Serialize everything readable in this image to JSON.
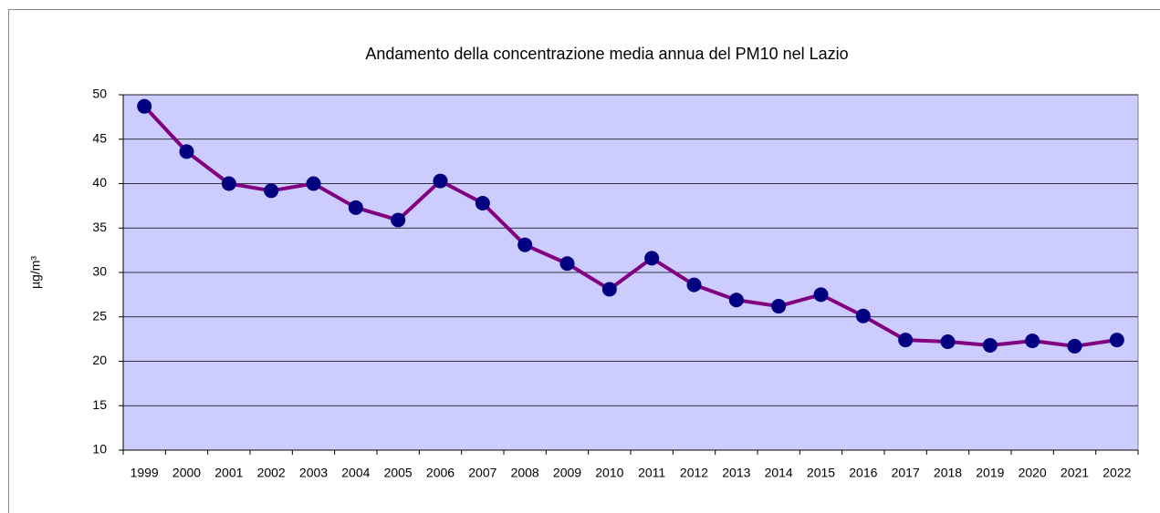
{
  "chart_data": {
    "type": "line",
    "title": "Andamento della concentrazione media annua del PM10 nel Lazio",
    "y_label": "µg/m³",
    "categories": [
      "1999",
      "2000",
      "2001",
      "2002",
      "2003",
      "2004",
      "2005",
      "2006",
      "2007",
      "2008",
      "2009",
      "2010",
      "2011",
      "2012",
      "2013",
      "2014",
      "2015",
      "2016",
      "2017",
      "2018",
      "2019",
      "2020",
      "2021",
      "2022"
    ],
    "values": [
      48.7,
      43.6,
      40.0,
      39.2,
      40.0,
      37.3,
      35.9,
      40.3,
      37.8,
      33.1,
      31.0,
      28.1,
      31.6,
      28.6,
      26.9,
      26.2,
      27.5,
      25.1,
      22.4,
      22.2,
      21.8,
      22.3,
      21.7,
      22.4
    ],
    "color": "#800080",
    "marker_color": "#000080",
    "plot_background": "#ccccff",
    "ylim": [
      10,
      50
    ],
    "yticks": [
      10,
      15,
      20,
      25,
      30,
      35,
      40,
      45,
      50
    ],
    "grid": true
  }
}
